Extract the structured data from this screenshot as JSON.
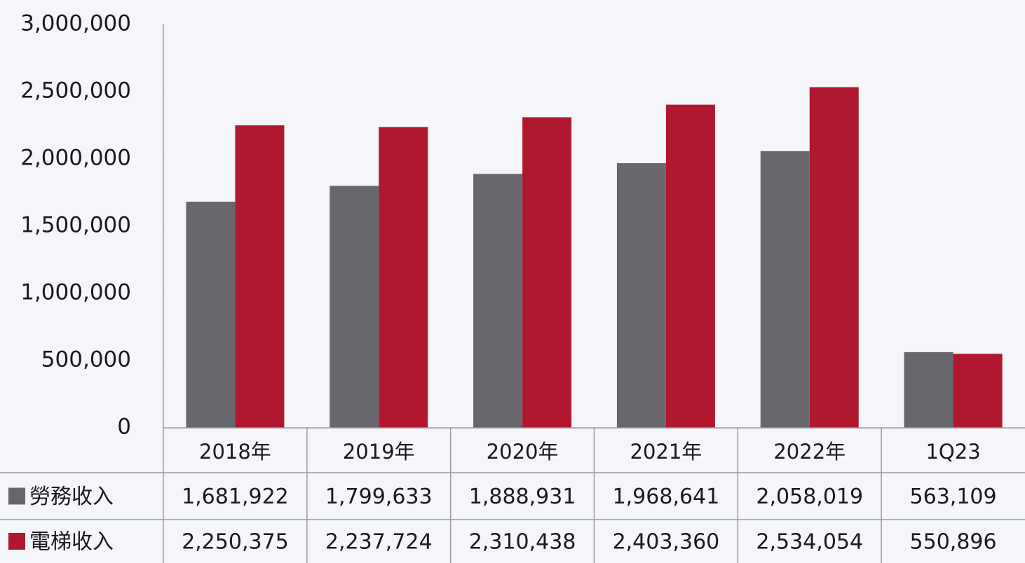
{
  "chart_data": {
    "type": "bar",
    "categories": [
      "2018年",
      "2019年",
      "2020年",
      "2021年",
      "2022年",
      "1Q23"
    ],
    "series": [
      {
        "name": "勞務收入",
        "color": "#67676d",
        "values": [
          1681922,
          1799633,
          1888931,
          1968641,
          2058019,
          563109
        ],
        "value_labels": [
          "1,681,922",
          "1,799,633",
          "1,888,931",
          "1,968,641",
          "2,058,019",
          "563,109"
        ]
      },
      {
        "name": "電梯收入",
        "color": "#b01830",
        "values": [
          2250375,
          2237724,
          2310438,
          2403360,
          2534054,
          550896
        ],
        "value_labels": [
          "2,250,375",
          "2,237,724",
          "2,310,438",
          "2,403,360",
          "2,534,054",
          "550,896"
        ]
      }
    ],
    "ylim": [
      0,
      3000000
    ],
    "yticks": [
      0,
      {
        "value": 500000,
        "label": "500,000"
      },
      {
        "value": 1000000,
        "label": "1,000,000"
      },
      {
        "value": 1500000,
        "label": "1,500,000"
      },
      {
        "value": 2000000,
        "label": "2,000,000"
      },
      {
        "value": 2500000,
        "label": "2,500,000"
      },
      {
        "value": 3000000,
        "label": "3,000,000"
      }
    ],
    "data_table": true
  }
}
